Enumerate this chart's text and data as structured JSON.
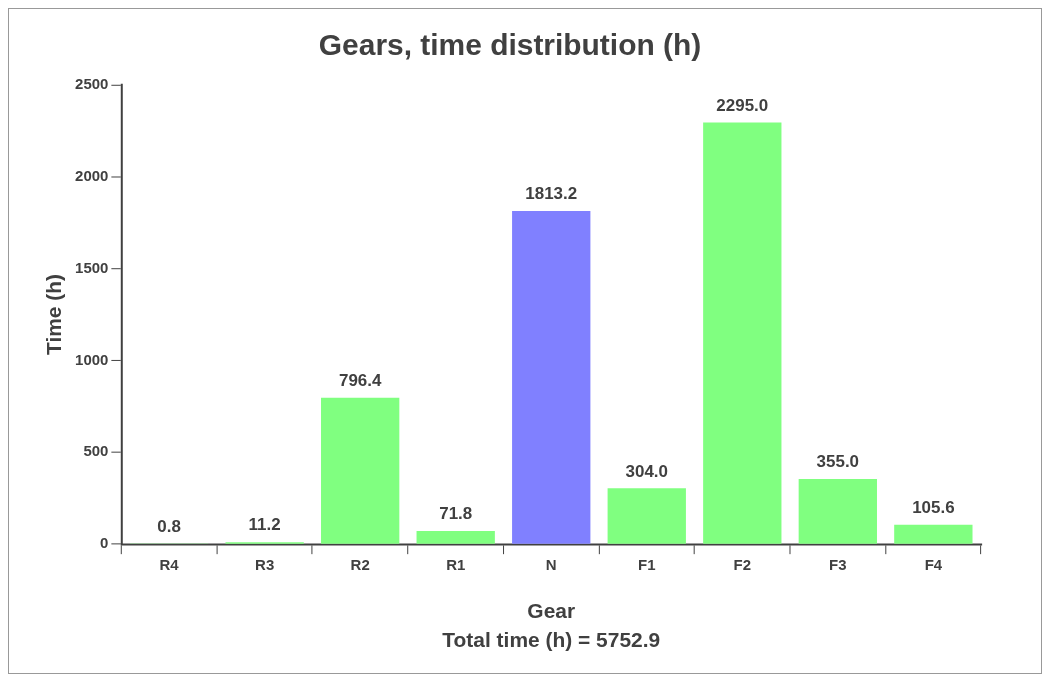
{
  "chart_data": {
    "type": "bar",
    "title": "Gears, time distribution (h)",
    "xlabel": "Gear",
    "ylabel": "Time (h)",
    "categories": [
      "R4",
      "R3",
      "R2",
      "R1",
      "N",
      "F1",
      "F2",
      "F3",
      "F4"
    ],
    "values": [
      0.8,
      11.2,
      796.4,
      71.8,
      1813.2,
      304.0,
      2295.0,
      355.0,
      105.6
    ],
    "colors": [
      "#80ff80",
      "#80ff80",
      "#80ff80",
      "#80ff80",
      "#8080ff",
      "#80ff80",
      "#80ff80",
      "#80ff80",
      "#80ff80"
    ],
    "value_labels": [
      "0.8",
      "11.2",
      "796.4",
      "71.8",
      "1813.2",
      "304.0",
      "2295.0",
      "355.0",
      "105.6"
    ],
    "ylim": [
      0,
      2500
    ],
    "yticks": [
      0,
      500,
      1000,
      1500,
      2000,
      2500
    ],
    "grid": false,
    "legend": false,
    "annotations": [
      "Total time (h) = 5752.9"
    ]
  }
}
